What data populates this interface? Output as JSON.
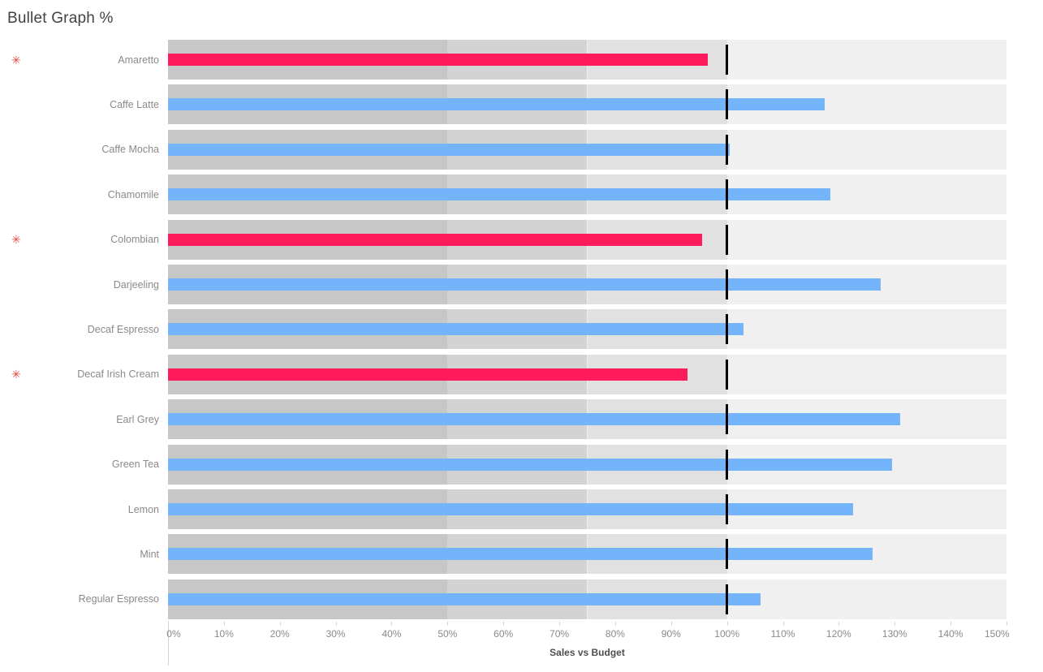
{
  "window": {
    "title": "Bullet Graph %"
  },
  "icons": {
    "flag_glyph": "✳",
    "flag_color": "#e8493f"
  },
  "colors": {
    "bar_blue": "#74b4fb",
    "bar_red": "#fe1b5b",
    "band_dark": "#c7c7c7",
    "band_mid": "#d3d3d3",
    "band_light": "#e1e1e1",
    "row_background": "#f0f0f0",
    "reference_line": "#000000",
    "label_gray": "#8a8a8a"
  },
  "chart_data": {
    "type": "bullet",
    "title": "Bullet Graph %",
    "xlabel": "Sales vs Budget",
    "xlim": [
      0,
      150
    ],
    "x_tick_labels": [
      "0%",
      "10%",
      "20%",
      "30%",
      "40%",
      "50%",
      "60%",
      "70%",
      "80%",
      "90%",
      "100%",
      "110%",
      "120%",
      "130%",
      "140%",
      "150%"
    ],
    "grid": false,
    "reference_line_value": 100,
    "reference_bands": [
      {
        "from": 0,
        "to": 50,
        "color": "#c7c7c7"
      },
      {
        "from": 50,
        "to": 75,
        "color": "#d3d3d3"
      },
      {
        "from": 75,
        "to": 100,
        "color": "#e1e1e1"
      }
    ],
    "rows": [
      {
        "label": "Amaretto",
        "value": 96.5,
        "bar_color": "#fe1b5b",
        "flagged": true
      },
      {
        "label": "Caffe Latte",
        "value": 117.5,
        "bar_color": "#74b4fb",
        "flagged": false
      },
      {
        "label": "Caffe Mocha",
        "value": 100.5,
        "bar_color": "#74b4fb",
        "flagged": false
      },
      {
        "label": "Chamomile",
        "value": 118.5,
        "bar_color": "#74b4fb",
        "flagged": false
      },
      {
        "label": "Colombian",
        "value": 95.5,
        "bar_color": "#fe1b5b",
        "flagged": true
      },
      {
        "label": "Darjeeling",
        "value": 127.5,
        "bar_color": "#74b4fb",
        "flagged": false
      },
      {
        "label": "Decaf Espresso",
        "value": 103,
        "bar_color": "#74b4fb",
        "flagged": false
      },
      {
        "label": "Decaf Irish Cream",
        "value": 93,
        "bar_color": "#fe1b5b",
        "flagged": true
      },
      {
        "label": "Earl Grey",
        "value": 131,
        "bar_color": "#74b4fb",
        "flagged": false
      },
      {
        "label": "Green Tea",
        "value": 129.5,
        "bar_color": "#74b4fb",
        "flagged": false
      },
      {
        "label": "Lemon",
        "value": 122.5,
        "bar_color": "#74b4fb",
        "flagged": false
      },
      {
        "label": "Mint",
        "value": 126,
        "bar_color": "#74b4fb",
        "flagged": false
      },
      {
        "label": "Regular Espresso",
        "value": 106,
        "bar_color": "#74b4fb",
        "flagged": false
      }
    ]
  }
}
